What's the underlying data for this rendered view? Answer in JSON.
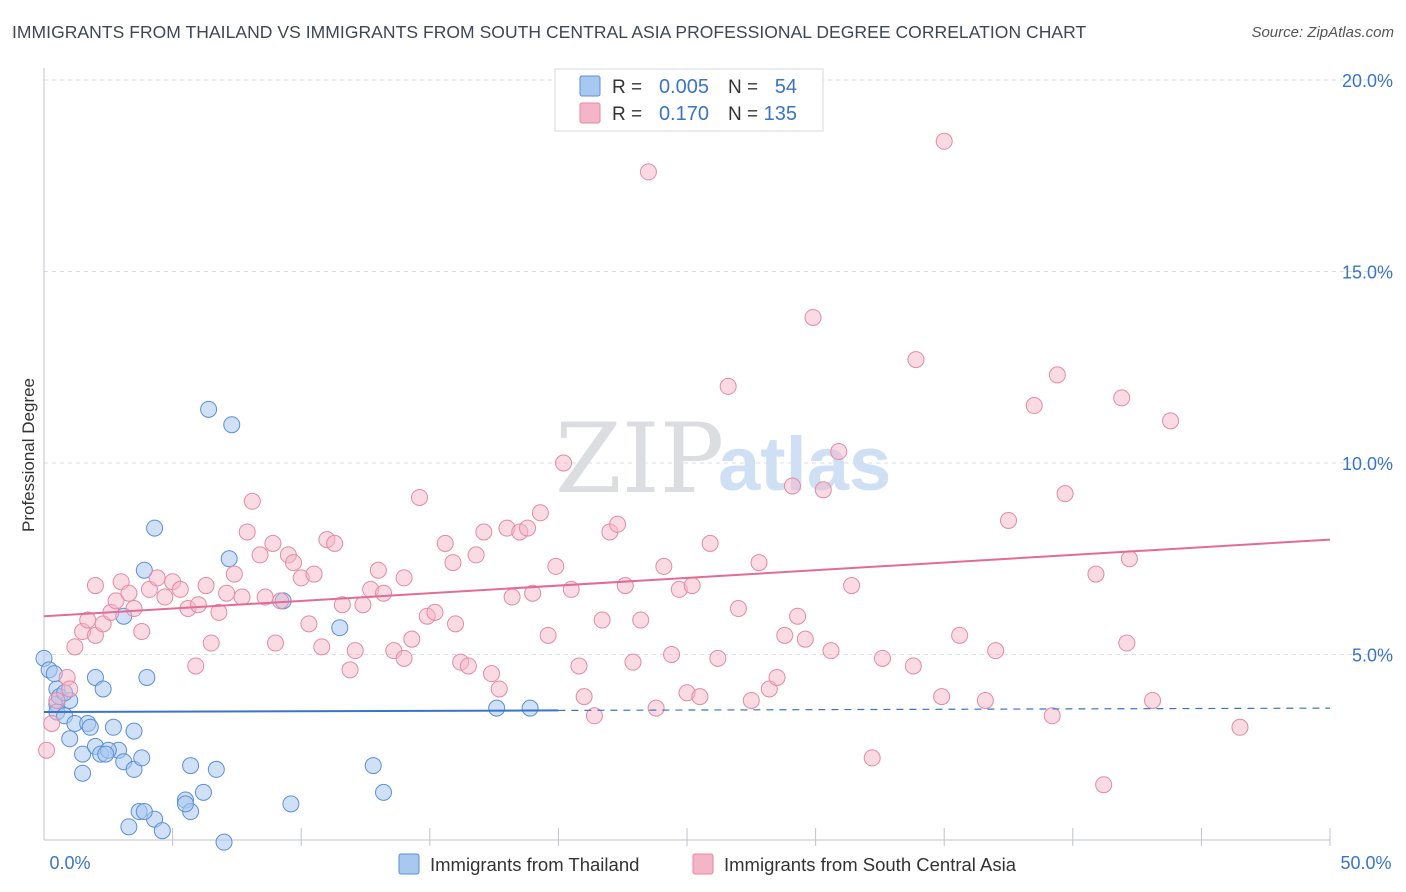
{
  "title": "IMMIGRANTS FROM THAILAND VS IMMIGRANTS FROM SOUTH CENTRAL ASIA PROFESSIONAL DEGREE CORRELATION CHART",
  "source": "Source: ZipAtlas.com",
  "watermark": {
    "zip": "ZIP",
    "atlas": "atlas"
  },
  "colors": {
    "blue_fill": "#a9c8f0",
    "blue_stroke": "#5b8fd8",
    "blue_line": "#3a74c9",
    "pink_fill": "#f5b5c8",
    "pink_stroke": "#e48aa6",
    "pink_line": "#e26c95",
    "axis_label": "#3a74c9",
    "grid": "#d9dce1"
  },
  "legend": [
    {
      "r_label": "R = ",
      "r_value": "0.005",
      "n_label": "N = ",
      "n_value": "54"
    },
    {
      "r_label": "R = ",
      "r_value": "0.170",
      "n_label": "N = ",
      "n_value": "135"
    }
  ],
  "chart_data": {
    "type": "scatter",
    "title": "IMMIGRANTS FROM THAILAND VS IMMIGRANTS FROM SOUTH CENTRAL ASIA PROFESSIONAL DEGREE CORRELATION CHART",
    "xlabel": "",
    "ylabel": "Professional Degree",
    "xlim": [
      0,
      50
    ],
    "ylim": [
      0,
      20
    ],
    "x_tick_labels": [
      "0.0%",
      "50.0%"
    ],
    "y_ticks": [
      5,
      10,
      15,
      20
    ],
    "y_tick_labels": [
      "5.0%",
      "10.0%",
      "15.0%",
      "20.0%"
    ],
    "grid": true,
    "legend_position": "top-center",
    "series": [
      {
        "name": "Immigrants from Thailand",
        "color": "blue",
        "r": 0.005,
        "n": 54,
        "trend": {
          "x0": 0,
          "y0": 3.5,
          "x1": 50,
          "y1": 3.6,
          "solid_until_x": 20
        },
        "points": [
          [
            0.0,
            4.9
          ],
          [
            0.2,
            4.6
          ],
          [
            0.5,
            4.1
          ],
          [
            0.5,
            3.7
          ],
          [
            0.5,
            3.5
          ],
          [
            0.6,
            3.9
          ],
          [
            1.0,
            3.8
          ],
          [
            0.8,
            3.4
          ],
          [
            1.2,
            3.2
          ],
          [
            1.0,
            2.8
          ],
          [
            1.5,
            2.4
          ],
          [
            2.0,
            4.4
          ],
          [
            2.3,
            4.1
          ],
          [
            1.7,
            3.2
          ],
          [
            2.7,
            3.1
          ],
          [
            2.0,
            2.6
          ],
          [
            2.2,
            2.4
          ],
          [
            2.9,
            2.5
          ],
          [
            3.1,
            2.2
          ],
          [
            1.5,
            1.9
          ],
          [
            2.5,
            2.5
          ],
          [
            2.4,
            2.4
          ],
          [
            3.5,
            2.0
          ],
          [
            3.5,
            3.0
          ],
          [
            3.1,
            6.0
          ],
          [
            3.9,
            7.2
          ],
          [
            4.0,
            4.4
          ],
          [
            4.3,
            8.3
          ],
          [
            5.7,
            2.1
          ],
          [
            5.5,
            1.2
          ],
          [
            4.3,
            0.7
          ],
          [
            4.6,
            0.4
          ],
          [
            3.3,
            0.5
          ],
          [
            3.7,
            0.9
          ],
          [
            3.9,
            0.9
          ],
          [
            5.7,
            0.9
          ],
          [
            5.5,
            1.1
          ],
          [
            6.2,
            1.4
          ],
          [
            6.7,
            2.0
          ],
          [
            7.0,
            0.1
          ],
          [
            7.2,
            7.5
          ],
          [
            6.4,
            11.4
          ],
          [
            7.3,
            11.0
          ],
          [
            9.3,
            6.4
          ],
          [
            9.6,
            1.1
          ],
          [
            11.5,
            5.7
          ],
          [
            12.8,
            2.1
          ],
          [
            13.2,
            1.4
          ],
          [
            17.6,
            3.6
          ],
          [
            18.9,
            3.6
          ],
          [
            0.4,
            4.5
          ],
          [
            0.8,
            4.0
          ],
          [
            1.8,
            3.1
          ],
          [
            3.8,
            2.3
          ]
        ]
      },
      {
        "name": "Immigrants from South Central Asia",
        "color": "pink",
        "r": 0.17,
        "n": 135,
        "trend": {
          "x0": 0,
          "y0": 6.0,
          "x1": 50,
          "y1": 8.0
        },
        "points": [
          [
            0.1,
            2.5
          ],
          [
            0.3,
            3.2
          ],
          [
            0.5,
            3.8
          ],
          [
            0.9,
            4.4
          ],
          [
            1.0,
            4.1
          ],
          [
            1.2,
            5.2
          ],
          [
            1.5,
            5.6
          ],
          [
            1.7,
            5.9
          ],
          [
            2.0,
            5.5
          ],
          [
            2.3,
            5.8
          ],
          [
            2.6,
            6.1
          ],
          [
            2.8,
            6.4
          ],
          [
            3.0,
            6.9
          ],
          [
            3.3,
            6.6
          ],
          [
            3.5,
            6.2
          ],
          [
            3.8,
            5.6
          ],
          [
            4.1,
            6.7
          ],
          [
            4.4,
            7.0
          ],
          [
            4.7,
            6.5
          ],
          [
            5.0,
            6.9
          ],
          [
            5.3,
            6.7
          ],
          [
            5.6,
            6.2
          ],
          [
            5.9,
            4.7
          ],
          [
            6.0,
            6.3
          ],
          [
            6.3,
            6.8
          ],
          [
            6.5,
            5.3
          ],
          [
            6.8,
            6.1
          ],
          [
            7.1,
            6.6
          ],
          [
            7.4,
            7.1
          ],
          [
            7.7,
            6.5
          ],
          [
            7.9,
            8.2
          ],
          [
            8.1,
            9.0
          ],
          [
            8.4,
            7.6
          ],
          [
            8.6,
            6.5
          ],
          [
            8.9,
            7.9
          ],
          [
            9.2,
            6.4
          ],
          [
            9.5,
            7.6
          ],
          [
            9.7,
            7.4
          ],
          [
            10.0,
            7.0
          ],
          [
            10.3,
            5.8
          ],
          [
            10.5,
            7.1
          ],
          [
            10.8,
            5.2
          ],
          [
            11.0,
            8.0
          ],
          [
            11.3,
            7.9
          ],
          [
            11.6,
            6.3
          ],
          [
            11.9,
            4.6
          ],
          [
            12.1,
            5.1
          ],
          [
            12.4,
            6.3
          ],
          [
            12.7,
            6.7
          ],
          [
            13.0,
            7.2
          ],
          [
            13.2,
            6.6
          ],
          [
            13.6,
            5.1
          ],
          [
            14.0,
            7.0
          ],
          [
            14.3,
            5.4
          ],
          [
            14.6,
            9.1
          ],
          [
            14.9,
            6.0
          ],
          [
            15.2,
            6.1
          ],
          [
            15.6,
            7.9
          ],
          [
            15.9,
            7.4
          ],
          [
            16.2,
            4.8
          ],
          [
            16.5,
            4.7
          ],
          [
            16.8,
            7.6
          ],
          [
            17.1,
            8.2
          ],
          [
            17.4,
            4.5
          ],
          [
            17.7,
            4.1
          ],
          [
            18.0,
            8.3
          ],
          [
            18.2,
            6.5
          ],
          [
            18.5,
            8.2
          ],
          [
            18.8,
            8.3
          ],
          [
            19.0,
            6.6
          ],
          [
            19.3,
            8.7
          ],
          [
            19.6,
            5.5
          ],
          [
            19.9,
            7.3
          ],
          [
            20.2,
            10.0
          ],
          [
            20.5,
            6.7
          ],
          [
            20.8,
            4.7
          ],
          [
            21.0,
            3.9
          ],
          [
            21.4,
            3.4
          ],
          [
            21.7,
            5.9
          ],
          [
            22.0,
            8.2
          ],
          [
            22.3,
            8.4
          ],
          [
            22.6,
            6.8
          ],
          [
            22.9,
            4.8
          ],
          [
            23.2,
            5.9
          ],
          [
            23.5,
            17.6
          ],
          [
            23.8,
            3.6
          ],
          [
            24.1,
            7.3
          ],
          [
            24.4,
            5.0
          ],
          [
            24.7,
            6.7
          ],
          [
            25.0,
            4.0
          ],
          [
            25.2,
            6.8
          ],
          [
            25.5,
            3.9
          ],
          [
            25.9,
            7.9
          ],
          [
            26.2,
            4.9
          ],
          [
            26.6,
            12.0
          ],
          [
            27.0,
            6.2
          ],
          [
            27.5,
            3.8
          ],
          [
            27.8,
            7.4
          ],
          [
            28.2,
            4.1
          ],
          [
            28.5,
            4.4
          ],
          [
            28.8,
            5.5
          ],
          [
            29.1,
            9.4
          ],
          [
            29.3,
            6.0
          ],
          [
            29.6,
            5.4
          ],
          [
            29.9,
            13.8
          ],
          [
            30.3,
            9.3
          ],
          [
            30.6,
            5.1
          ],
          [
            30.9,
            10.3
          ],
          [
            31.4,
            6.8
          ],
          [
            32.2,
            2.3
          ],
          [
            32.6,
            4.9
          ],
          [
            33.8,
            4.7
          ],
          [
            33.9,
            12.7
          ],
          [
            34.9,
            3.9
          ],
          [
            35.0,
            18.4
          ],
          [
            35.6,
            5.5
          ],
          [
            36.6,
            3.8
          ],
          [
            37.0,
            5.1
          ],
          [
            37.5,
            8.5
          ],
          [
            38.5,
            11.5
          ],
          [
            39.2,
            3.4
          ],
          [
            39.4,
            12.3
          ],
          [
            39.7,
            9.2
          ],
          [
            40.9,
            7.1
          ],
          [
            41.2,
            1.6
          ],
          [
            41.9,
            11.7
          ],
          [
            42.1,
            5.3
          ],
          [
            42.2,
            7.5
          ],
          [
            43.1,
            3.8
          ],
          [
            43.8,
            11.1
          ],
          [
            46.5,
            3.1
          ],
          [
            14.0,
            4.9
          ],
          [
            16.0,
            5.8
          ],
          [
            9.0,
            5.3
          ],
          [
            2.0,
            6.8
          ]
        ]
      }
    ]
  }
}
